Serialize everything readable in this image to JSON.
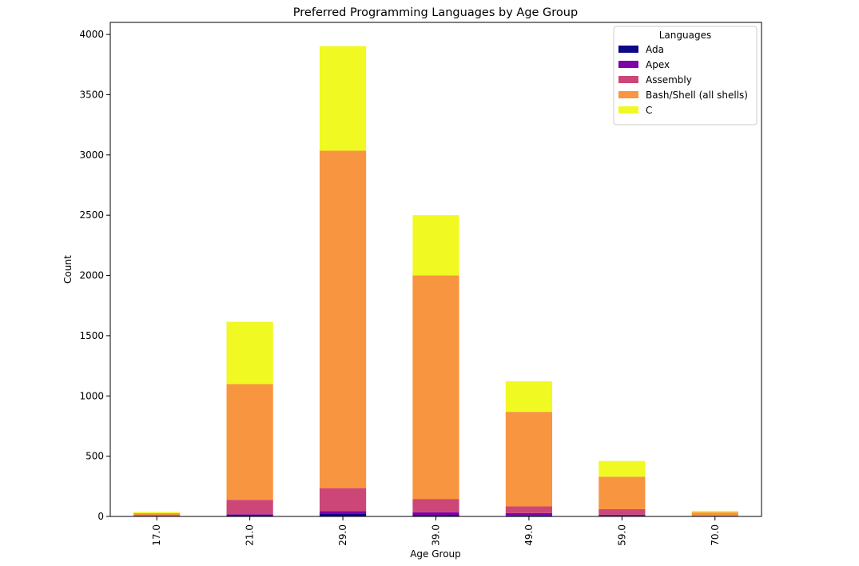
{
  "chart_data": {
    "type": "bar",
    "stacked": true,
    "title": "Preferred Programming Languages by Age Group",
    "xlabel": "Age Group",
    "ylabel": "Count",
    "categories": [
      "17.0",
      "21.0",
      "29.0",
      "39.0",
      "49.0",
      "59.0",
      "70.0"
    ],
    "ylim": [
      0,
      4100
    ],
    "yticks": [
      0,
      500,
      1000,
      1500,
      2000,
      2500,
      3000,
      3500,
      4000
    ],
    "grid": false,
    "legend": {
      "title": "Languages",
      "placement": "top-right"
    },
    "series": [
      {
        "name": "Ada",
        "color": "#0d0887",
        "values": [
          2,
          10,
          20,
          10,
          8,
          5,
          1
        ]
      },
      {
        "name": "Apex",
        "color": "#7e03a8",
        "values": [
          2,
          8,
          25,
          25,
          20,
          10,
          1
        ]
      },
      {
        "name": "Assembly",
        "color": "#cc4778",
        "values": [
          8,
          120,
          190,
          110,
          55,
          45,
          4
        ]
      },
      {
        "name": "Bash/Shell (all shells)",
        "color": "#f89540",
        "values": [
          15,
          960,
          2800,
          1855,
          785,
          270,
          29
        ]
      },
      {
        "name": "C",
        "color": "#f0f921",
        "values": [
          10,
          517,
          868,
          500,
          253,
          130,
          12
        ]
      }
    ]
  }
}
